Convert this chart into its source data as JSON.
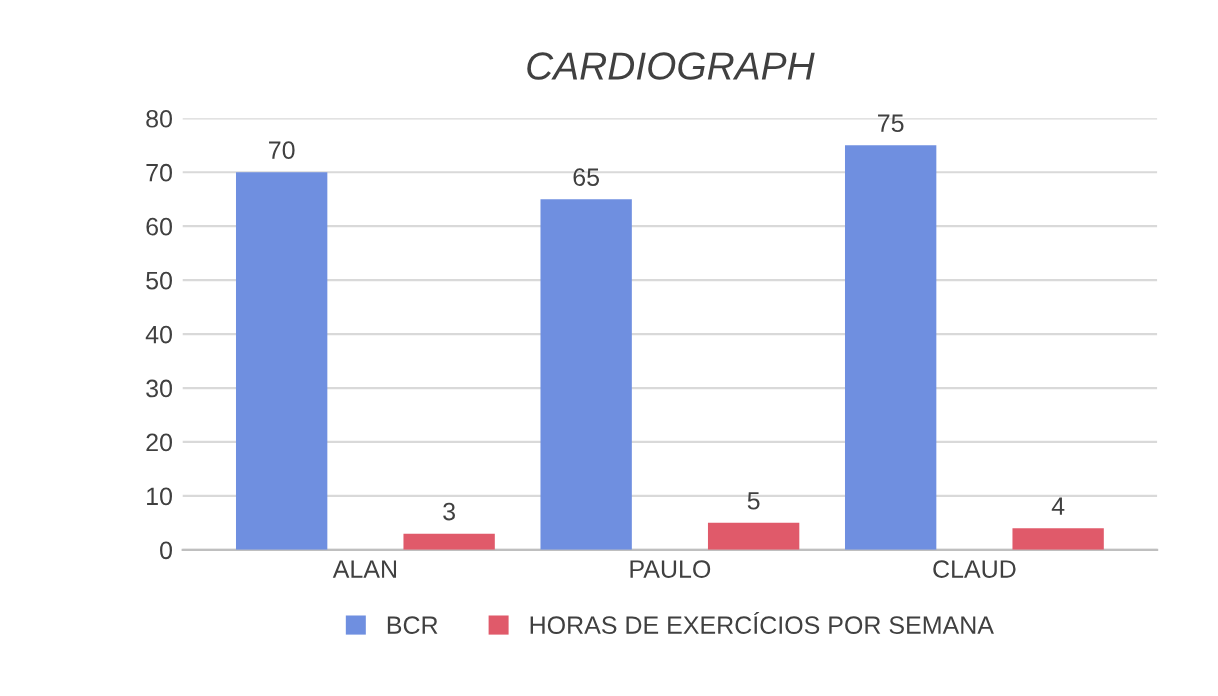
{
  "chart_data": {
    "type": "bar",
    "title": "CARDIOGRAPH",
    "categories": [
      "ALAN",
      "PAULO",
      "CLAUD"
    ],
    "series": [
      {
        "name": "BCR",
        "color": "#6f8fe0",
        "values": [
          70,
          65,
          75
        ]
      },
      {
        "name": "HORAS DE EXERCÍCIOS POR SEMANA",
        "color": "#e05a6a",
        "values": [
          3,
          5,
          4
        ]
      }
    ],
    "ylim": [
      0,
      80
    ],
    "yticks": [
      0,
      10,
      20,
      30,
      40,
      50,
      60,
      70,
      80
    ],
    "grid": "y",
    "legend": "bottom",
    "data_labels": true
  }
}
